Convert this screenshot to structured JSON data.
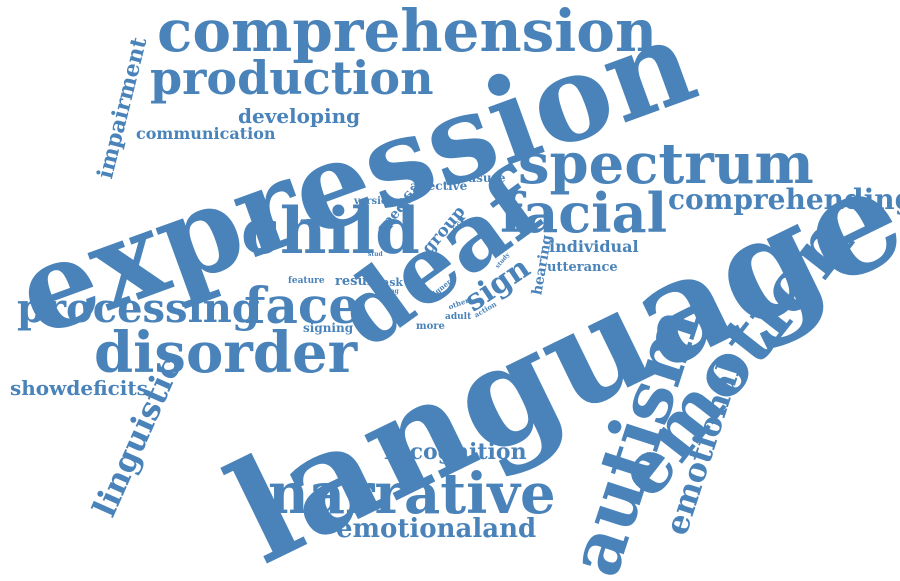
{
  "color": "#4a83b9",
  "words": {
    "comprehension": "comprehension",
    "production": "production",
    "expression": "expression",
    "spectrum": "spectrum",
    "impairment": "impairment",
    "developing": "developing",
    "communication": "communication",
    "facial": "facial",
    "comprehending": "comprehending",
    "child": "child",
    "deaf": "deaf",
    "language": "language",
    "autism": "autism",
    "emotion": "emotion",
    "emotional": "emotional",
    "processing": "processing",
    "face": "face",
    "disorder": "disorder",
    "showdeficits": "showdeficits",
    "linguistic": "linguistic",
    "narrative": "narrative",
    "emotionaland": "emotionaland",
    "recognition": "recognition",
    "sign": "sign",
    "individual": "individual",
    "utterance": "utterance",
    "hearing": "hearing",
    "group": "group",
    "specific": "specific",
    "measure": "measure",
    "affective": "affective",
    "version": "version",
    "control": "control",
    "feature": "feature",
    "result": "result",
    "task": "task",
    "signing": "signing",
    "more": "more",
    "adult": "adult",
    "action": "action",
    "other": "other",
    "signer": "signer",
    "deficit": "deficit",
    "study": "study",
    "lang": "lang",
    "stud": "stud"
  }
}
